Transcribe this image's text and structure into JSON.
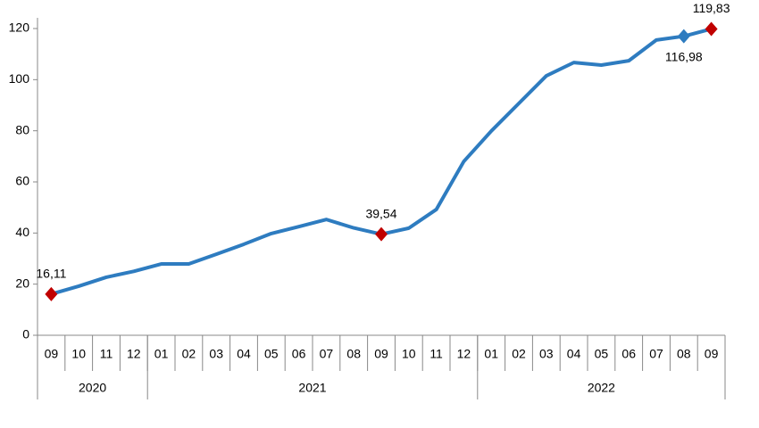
{
  "chart_data": {
    "type": "line",
    "categories": [
      "09",
      "10",
      "11",
      "12",
      "01",
      "02",
      "03",
      "04",
      "05",
      "06",
      "07",
      "08",
      "09",
      "10",
      "11",
      "12",
      "01",
      "02",
      "03",
      "04",
      "05",
      "06",
      "07",
      "08",
      "09"
    ],
    "groups": [
      {
        "label": "2020",
        "span": 4
      },
      {
        "label": "2021",
        "span": 12
      },
      {
        "label": "2022",
        "span": 9
      }
    ],
    "series": [
      {
        "color": "#2e7cc0",
        "values": [
          16.11,
          19.2,
          22.7,
          25,
          27.9,
          27.9,
          31.7,
          35.6,
          39.8,
          42.5,
          45.3,
          42,
          39.54,
          41.9,
          49.2,
          68,
          79.9,
          90.7,
          101.5,
          106.7,
          105.7,
          107.4,
          115.5,
          116.98,
          119.83
        ],
        "value_labels": [
          "16,11",
          null,
          null,
          null,
          null,
          null,
          null,
          null,
          null,
          null,
          null,
          null,
          "39,54",
          null,
          null,
          null,
          null,
          null,
          null,
          null,
          null,
          null,
          null,
          "116,98",
          "119,83"
        ],
        "point_colors": [
          "#c00000",
          null,
          null,
          null,
          null,
          null,
          null,
          null,
          null,
          null,
          null,
          null,
          "#c00000",
          null,
          null,
          null,
          null,
          null,
          null,
          null,
          null,
          null,
          null,
          "#2e7cc0",
          "#c00000"
        ]
      }
    ],
    "ylim": [
      0,
      120
    ],
    "yticks": [
      0,
      20,
      40,
      60,
      80,
      100,
      120
    ],
    "grid": false
  }
}
